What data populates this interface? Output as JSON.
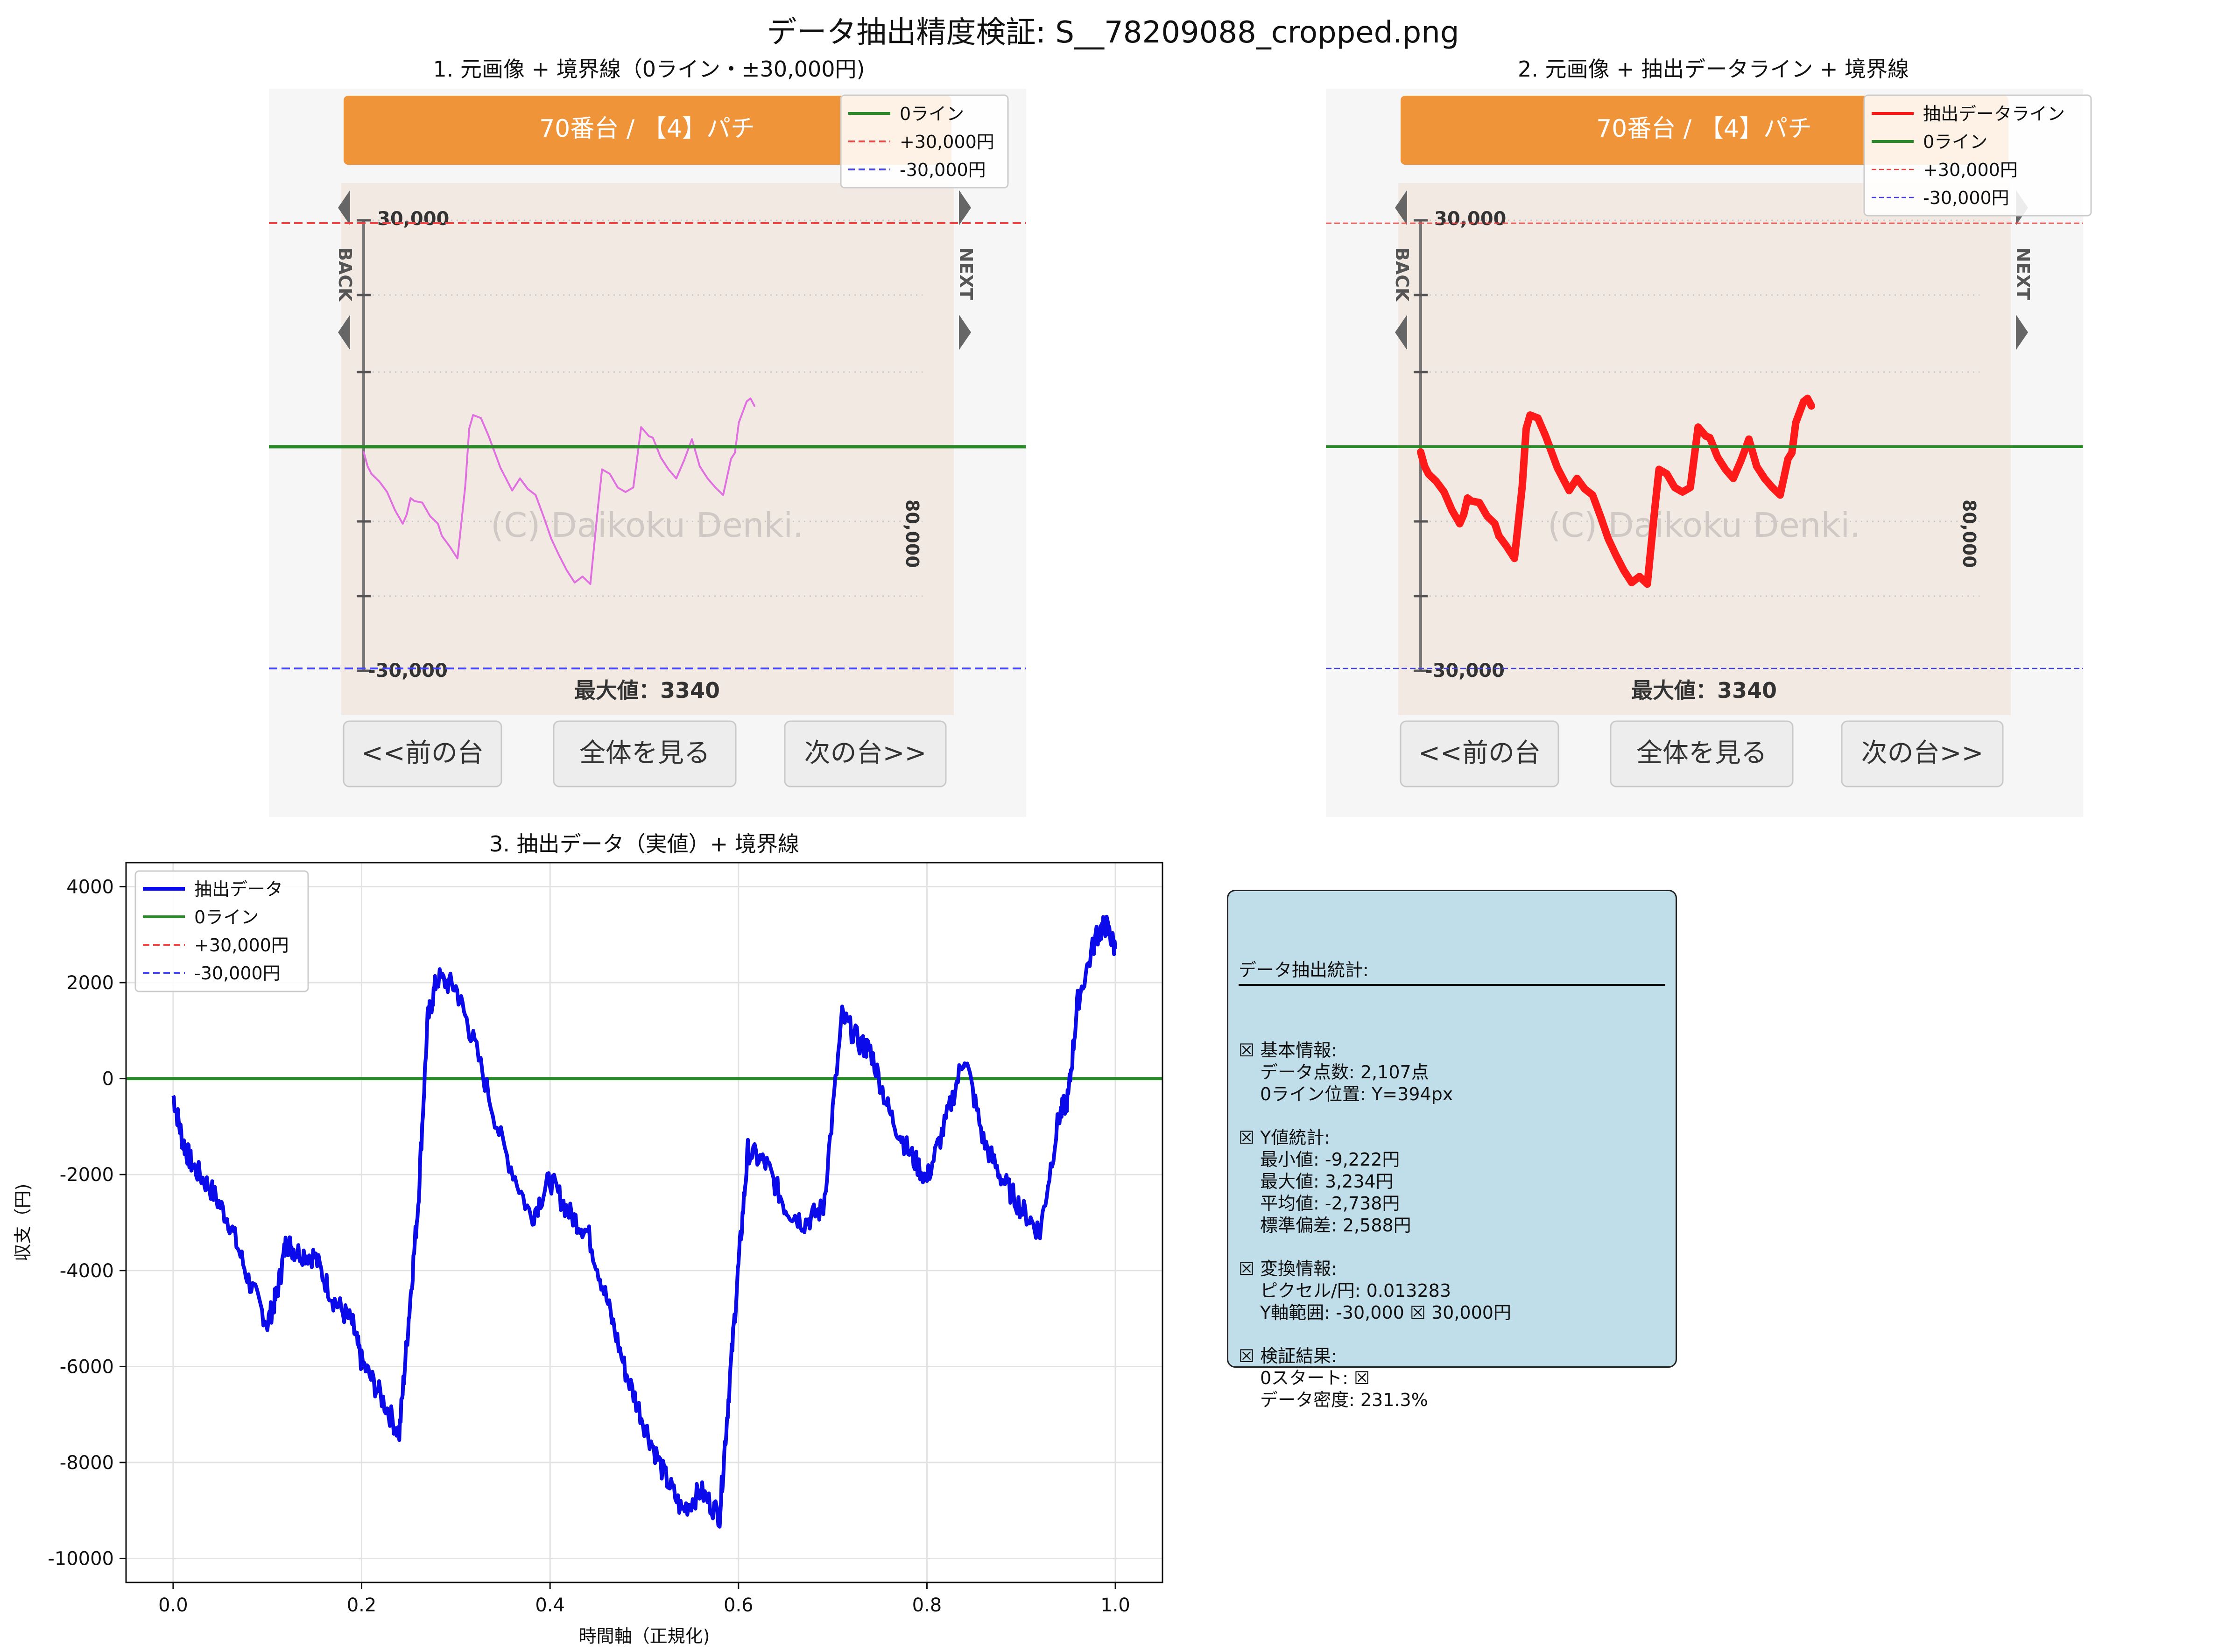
{
  "figure_title": "データ抽出精度検証: S__78209088_cropped.png",
  "panels": {
    "p1_title": "1. 元画像 + 境界線（0ライン・±30,000円)",
    "p2_title": "2. 元画像 + 抽出データライン + 境界線",
    "p3_title": "3. 抽出データ（実値）+ 境界線"
  },
  "source_image": {
    "header": "70番台 / 【4】パチ",
    "y_top_label": "30,000",
    "y_bottom_label": "-30,000",
    "right_label": "80,000",
    "watermark": "(C) Daikoku Denki.",
    "max_label": "最大値：3340",
    "back_label": "BACK",
    "next_label": "NEXT",
    "buttons": [
      "<<前の台",
      "全体を見る",
      "次の台>>"
    ]
  },
  "legend1": [
    "0ライン",
    "+30,000円",
    "-30,000円"
  ],
  "legend2": [
    "抽出データライン",
    "0ライン",
    "+30,000円",
    "-30,000円"
  ],
  "legend3": [
    "抽出データ",
    "0ライン",
    "+30,000円",
    "-30,000円"
  ],
  "colors": {
    "data_blue": "#0a0aea",
    "zero_green": "#2a8a2a",
    "plus_red": "#ee4444",
    "minus_blue": "#4444ee",
    "extract_red": "#ff1a1a",
    "orig_pink": "#e070e0",
    "header_orange": "#f0943a"
  },
  "chart_data": {
    "type": "line",
    "title": "3. 抽出データ（実値）+ 境界線",
    "xlabel": "時間軸（正規化)",
    "ylabel": "収支（円)",
    "xlim": [
      -0.05,
      1.05
    ],
    "ylim": [
      -10500,
      4500
    ],
    "xticks": [
      "0.0",
      "0.2",
      "0.4",
      "0.6",
      "0.8",
      "1.0"
    ],
    "yticks": [
      "4000",
      "2000",
      "0",
      "-2000",
      "-4000",
      "-6000",
      "-8000",
      "-10000"
    ],
    "grid": true,
    "legend": "top-left",
    "series": [
      {
        "name": "抽出データ",
        "x": [
          0.0,
          0.01,
          0.02,
          0.04,
          0.06,
          0.08,
          0.1,
          0.11,
          0.12,
          0.13,
          0.15,
          0.17,
          0.19,
          0.2,
          0.22,
          0.24,
          0.25,
          0.26,
          0.27,
          0.28,
          0.3,
          0.32,
          0.35,
          0.38,
          0.4,
          0.42,
          0.44,
          0.46,
          0.48,
          0.5,
          0.52,
          0.54,
          0.56,
          0.58,
          0.59,
          0.6,
          0.61,
          0.63,
          0.65,
          0.67,
          0.69,
          0.71,
          0.73,
          0.74,
          0.76,
          0.78,
          0.8,
          0.82,
          0.84,
          0.86,
          0.88,
          0.9,
          0.92,
          0.94,
          0.95,
          0.96,
          0.98,
          0.99,
          1.0
        ],
        "y": [
          -350,
          -1300,
          -1800,
          -2300,
          -3000,
          -4200,
          -5100,
          -4500,
          -3400,
          -3600,
          -3700,
          -4600,
          -5100,
          -5900,
          -6600,
          -7400,
          -5000,
          -2600,
          1200,
          2100,
          1900,
          700,
          -1400,
          -2900,
          -2100,
          -2800,
          -3200,
          -4600,
          -6100,
          -7200,
          -8200,
          -9000,
          -8600,
          -9100,
          -6500,
          -3900,
          -1500,
          -1800,
          -2700,
          -3000,
          -2700,
          1300,
          700,
          600,
          -700,
          -1500,
          -2100,
          -900,
          500,
          -1300,
          -2100,
          -2700,
          -3200,
          -800,
          -400,
          1600,
          3000,
          3200,
          2700
        ]
      },
      {
        "name": "0ライン",
        "value": 0
      },
      {
        "name": "+30,000円",
        "value": 30000
      },
      {
        "name": "-30,000円",
        "value": -30000
      }
    ]
  },
  "stats": {
    "title": "データ抽出統計:",
    "sections": [
      {
        "head": "☒ 基本情報:",
        "lines": [
          "データ点数: 2,107点",
          "0ライン位置: Y=394px"
        ]
      },
      {
        "head": "☒ Y値統計:",
        "lines": [
          "最小値: -9,222円",
          "最大値: 3,234円",
          "平均値: -2,738円",
          "標準偏差: 2,588円"
        ]
      },
      {
        "head": "☒ 変換情報:",
        "lines": [
          "ピクセル/円: 0.013283",
          "Y軸範囲: -30,000 ☒ 30,000円"
        ]
      },
      {
        "head": "☒ 検証結果:",
        "lines": [
          "0スタート: ☒",
          "データ密度: 231.3%"
        ]
      }
    ]
  }
}
